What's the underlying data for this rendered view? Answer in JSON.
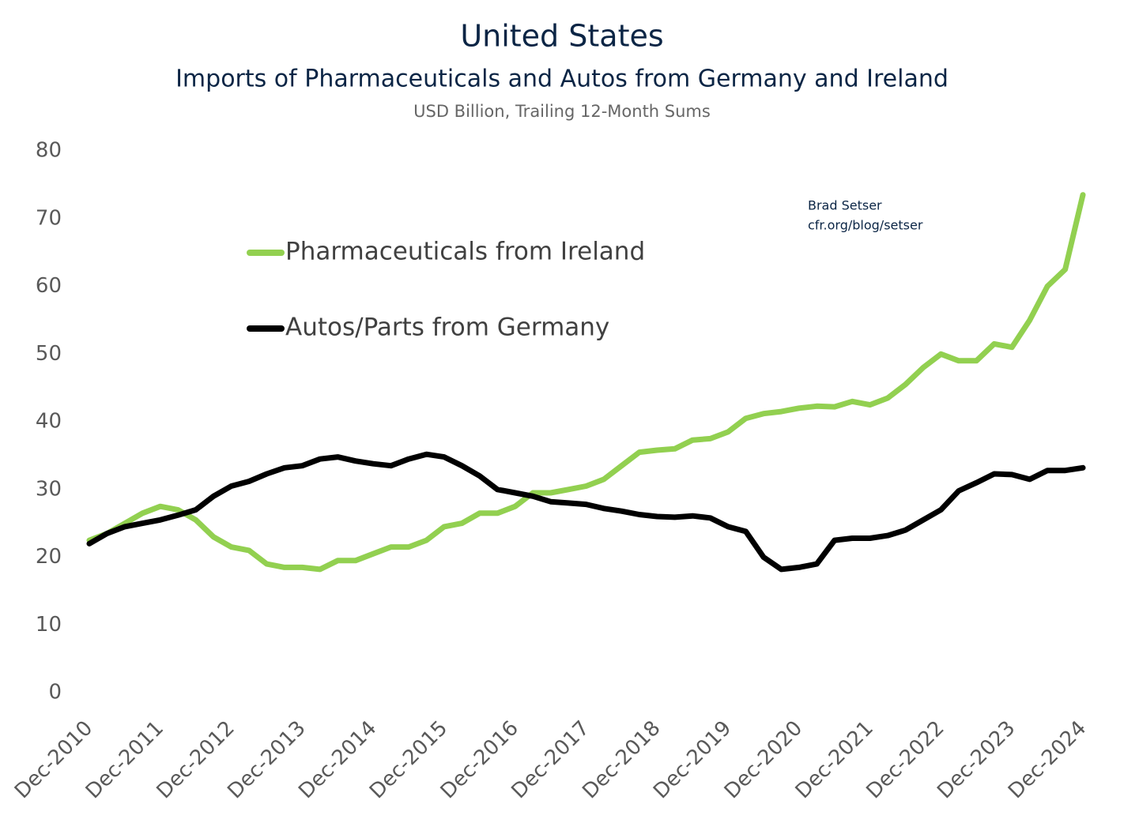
{
  "chart_data": {
    "type": "line",
    "title": "United States",
    "subtitle": "Imports of Pharmaceuticals and Autos from Germany and Ireland",
    "units": "USD Billion, Trailing 12-Month Sums",
    "annotations": [
      "Brad Setser",
      "cfr.org/blog/setser"
    ],
    "categories": [
      "Dec-2010",
      null,
      null,
      null,
      "Dec-2011",
      null,
      null,
      null,
      "Dec-2012",
      null,
      null,
      null,
      "Dec-2013",
      null,
      null,
      null,
      "Dec-2014",
      null,
      null,
      null,
      "Dec-2015",
      null,
      null,
      null,
      "Dec-2016",
      null,
      null,
      null,
      "Dec-2017",
      null,
      null,
      null,
      "Dec-2018",
      null,
      null,
      null,
      "Dec-2019",
      null,
      null,
      null,
      "Dec-2020",
      null,
      null,
      null,
      "Dec-2021",
      null,
      null,
      null,
      "Dec-2022",
      null,
      null,
      null,
      "Dec-2023",
      null,
      null,
      null,
      "Dec-2024"
    ],
    "series": [
      {
        "name": "Pharmaceuticals from Ireland",
        "color": "#92d050",
        "values": [
          22.5,
          23.5,
          25,
          26.5,
          27.5,
          27,
          25.5,
          23,
          21.5,
          21,
          19,
          18.5,
          18.5,
          18.2,
          19.5,
          19.5,
          20.5,
          21.5,
          21.5,
          22.5,
          24.5,
          25,
          26.5,
          26.5,
          27.5,
          29.5,
          29.5,
          30,
          30.5,
          31.5,
          33.5,
          35.5,
          35.8,
          36,
          37.3,
          37.5,
          38.5,
          40.5,
          41.2,
          41.5,
          42,
          42.3,
          42.2,
          43,
          42.5,
          43.5,
          45.5,
          48,
          50,
          49,
          49,
          51.5,
          51,
          55,
          60,
          62.5,
          73.5
        ]
      },
      {
        "name": "Autos/Parts from Germany",
        "color": "#000000",
        "values": [
          22,
          23.5,
          24.5,
          25,
          25.5,
          26.2,
          27,
          29,
          30.5,
          31.2,
          32.3,
          33.2,
          33.5,
          34.5,
          34.8,
          34.2,
          33.8,
          33.5,
          34.5,
          35.2,
          34.8,
          33.5,
          32,
          30,
          29.5,
          29,
          28.2,
          28,
          27.8,
          27.2,
          26.8,
          26.3,
          26,
          25.9,
          26.1,
          25.8,
          24.5,
          23.8,
          20,
          18.2,
          18.5,
          19,
          22.5,
          22.8,
          22.8,
          23.2,
          24,
          25.5,
          27,
          29.8,
          31,
          32.3,
          32.2,
          31.5,
          32.8,
          32.8,
          33.2
        ]
      }
    ],
    "ylim": [
      0,
      80
    ],
    "yticks": [
      0,
      10,
      20,
      30,
      40,
      50,
      60,
      70,
      80
    ],
    "grid": false
  }
}
